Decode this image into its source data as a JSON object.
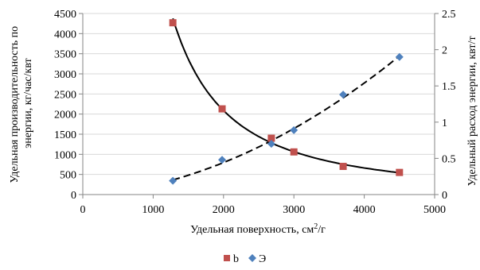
{
  "chart_data": {
    "type": "scatter",
    "title": "",
    "xlabel": "Удельная поверхность, см²/г",
    "xlabel_main": "Удельная поверхность, см",
    "xlabel_sup": "2",
    "xlabel_tail": "/г",
    "ylabel_left": "Удельная производительность по энергии, кг/час/квт",
    "ylabel_left_line1": "Удельная производительность по",
    "ylabel_left_line2": "энергии, кг/час/квт",
    "ylabel_right": "Удельный расход энергии, квт/т",
    "xlim": [
      0,
      5000
    ],
    "ylim_left": [
      0,
      4500
    ],
    "ylim_right": [
      0,
      2.5
    ],
    "x_ticks": [
      0,
      1000,
      2000,
      3000,
      4000,
      5000
    ],
    "y_left_ticks": [
      0,
      500,
      1000,
      1500,
      2000,
      2500,
      3000,
      3500,
      4000,
      4500
    ],
    "y_right_ticks": [
      "0",
      "0.5",
      "1",
      "1.5",
      "2",
      "2.5"
    ],
    "y_right_tick_values": [
      0,
      0.5,
      1,
      1.5,
      2,
      2.5
    ],
    "grid": "horizontal",
    "legend_position": "bottom",
    "series": [
      {
        "name": "b",
        "axis": "left",
        "marker": "square",
        "color": "#c0504d",
        "x": [
          1280,
          1980,
          2680,
          3000,
          3700,
          4500
        ],
        "y": [
          4270,
          2130,
          1400,
          1060,
          700,
          550
        ],
        "trend": "solid"
      },
      {
        "name": "Э",
        "axis": "right",
        "marker": "diamond",
        "color": "#4f81bd",
        "x": [
          1280,
          1980,
          2680,
          3000,
          3700,
          4500
        ],
        "y": [
          0.19,
          0.48,
          0.7,
          0.89,
          1.38,
          1.9
        ],
        "trend": "dashed"
      }
    ]
  }
}
